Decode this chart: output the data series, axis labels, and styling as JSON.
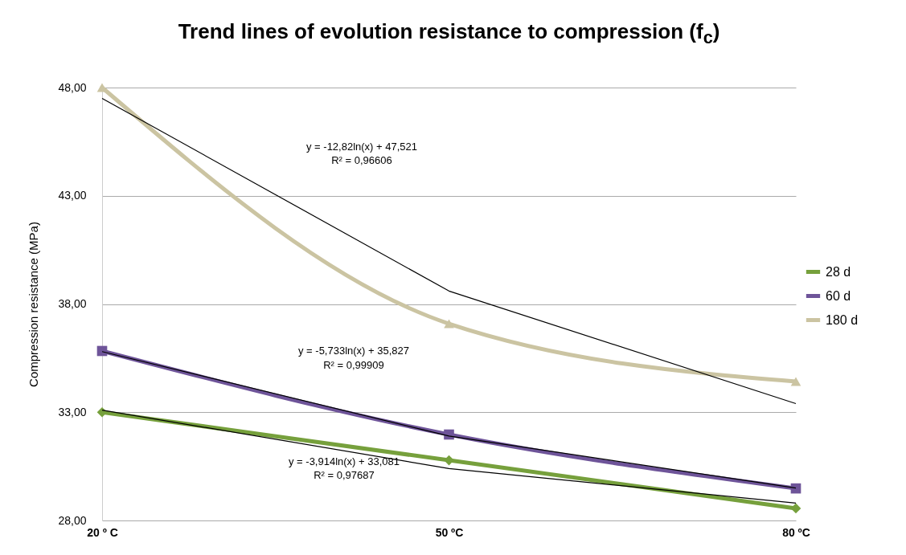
{
  "chart_data": {
    "type": "line",
    "title": "Trend lines of evolution resistance to compression (f$_{c}$)",
    "ylabel": "Compression resistance (MPa)",
    "categories": [
      "20 º C",
      "50 ºC",
      "80 ºC"
    ],
    "series": [
      {
        "name": "28 d",
        "color": "#76a03c",
        "marker": "diamond",
        "values": [
          33.0,
          30.78,
          28.56
        ]
      },
      {
        "name": "60 d",
        "color": "#6e5499",
        "marker": "square",
        "values": [
          35.83,
          31.97,
          29.48
        ]
      },
      {
        "name": "180 d",
        "color": "#cbc4a2",
        "marker": "triangle",
        "values": [
          48.0,
          37.09,
          34.42
        ]
      },
      {
        "type": "line",
        "color": "#000000",
        "x": [
          "20 º C",
          "50 ºC",
          "80 ºC"
        ],
        "values": [
          33.1,
          30.4,
          28.8
        ]
      },
      {
        "type": "line",
        "color": "#000000",
        "x": [
          "20 º C",
          "50 ºC",
          "80 ºC"
        ],
        "values": [
          35.8,
          31.9,
          29.5
        ]
      },
      {
        "type": "line",
        "color": "#000000",
        "x": [
          "20 º C",
          "50 ºC",
          "80 ºC"
        ],
        "values": [
          47.5,
          38.6,
          33.4
        ]
      }
    ],
    "ylim": [
      28,
      48
    ],
    "yticks": [
      {
        "value": 28,
        "label": "28,00"
      },
      {
        "value": 33,
        "label": "33,00"
      },
      {
        "value": 38,
        "label": "38,00"
      },
      {
        "value": 43,
        "label": "43,00"
      },
      {
        "value": 48,
        "label": "48,00"
      }
    ],
    "grid": "y",
    "legend": "right",
    "line_style": "solid",
    "annotations": [
      "y = -12,82ln(x) + 47,521",
      "R² = 0,96606",
      "y = -5,733ln(x) + 35,827",
      "R² = 0,99909",
      "y = -3,914ln(x) + 33,081",
      "R² = 0,97687"
    ]
  }
}
